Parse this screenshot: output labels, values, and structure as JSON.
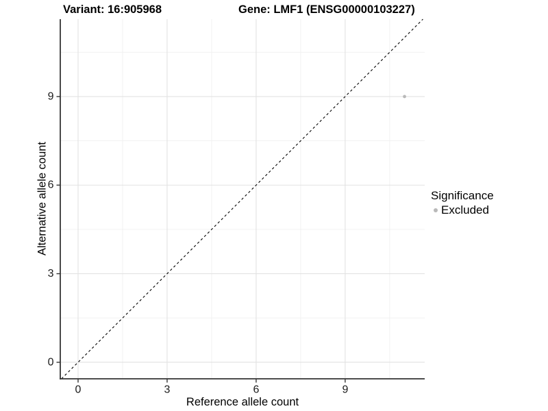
{
  "header": {
    "variant_title": "Variant: 16:905968",
    "gene_title": "Gene: LMF1 (ENSG00000103227)"
  },
  "legend": {
    "title": "Significance",
    "items": [
      {
        "label": "Excluded",
        "color": "#b9b9b9"
      }
    ]
  },
  "chart_data": {
    "type": "scatter",
    "title": "",
    "xlabel": "Reference allele count",
    "ylabel": "Alternative allele count",
    "x_ticks": [
      0,
      3,
      6,
      9
    ],
    "y_ticks": [
      0,
      3,
      6,
      9
    ],
    "x_minor_ticks": [
      1.5,
      4.5,
      7.5,
      10.5
    ],
    "y_minor_ticks": [
      1.5,
      4.5,
      7.5,
      10.5
    ],
    "xlim": [
      -0.6,
      11.68
    ],
    "ylim": [
      -0.56,
      11.62
    ],
    "grid": true,
    "legend_position": "right",
    "series": [
      {
        "name": "Excluded",
        "color": "#b9b9b9",
        "points": [
          {
            "x": 11,
            "y": 9
          }
        ]
      }
    ],
    "reference_line": {
      "equation": "y = x",
      "style": "dashed"
    },
    "colors": {
      "background": "#ffffff",
      "point": "#b9b9b9",
      "grid_major": "#e2e2e2",
      "grid_minor": "#f0f0f0",
      "axis": "#333333",
      "reference_line": "#000000",
      "text": "#1a1a1a"
    }
  }
}
